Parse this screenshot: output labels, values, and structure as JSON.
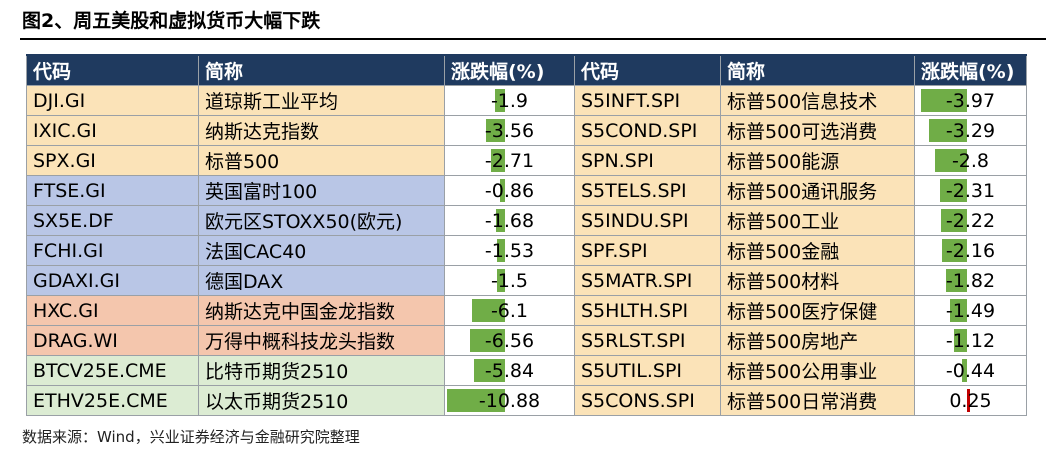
{
  "title": "图2、周五美股和虚拟货币大幅下跌",
  "source": "数据来源：Wind，兴业证券经济与金融研究院整理",
  "headers": [
    "代码",
    "简称",
    "涨跌幅(%)",
    "代码",
    "简称",
    "涨跌幅(%)"
  ],
  "colors": {
    "negative": "#70ad47",
    "positive": "#c00000",
    "header": "#1f3a5f"
  },
  "left_rows": [
    {
      "code": "DJI.GI",
      "name": "道琼斯工业平均",
      "change": "-1.9",
      "value": -1.9,
      "group": "us"
    },
    {
      "code": "IXIC.GI",
      "name": "纳斯达克指数",
      "change": "-3.56",
      "value": -3.56,
      "group": "us"
    },
    {
      "code": "SPX.GI",
      "name": "标普500",
      "change": "-2.71",
      "value": -2.71,
      "group": "us"
    },
    {
      "code": "FTSE.GI",
      "name": "英国富时100",
      "change": "-0.86",
      "value": -0.86,
      "group": "eu"
    },
    {
      "code": "SX5E.DF",
      "name": "欧元区STOXX50(欧元)",
      "change": "-1.68",
      "value": -1.68,
      "group": "eu"
    },
    {
      "code": "FCHI.GI",
      "name": "法国CAC40",
      "change": "-1.53",
      "value": -1.53,
      "group": "eu"
    },
    {
      "code": "GDAXI.GI",
      "name": "德国DAX",
      "change": "-1.5",
      "value": -1.5,
      "group": "eu"
    },
    {
      "code": "HXC.GI",
      "name": "纳斯达克中国金龙指数",
      "change": "-6.1",
      "value": -6.1,
      "group": "cn"
    },
    {
      "code": "DRAG.WI",
      "name": "万得中概科技龙头指数",
      "change": "-6.56",
      "value": -6.56,
      "group": "cn"
    },
    {
      "code": "BTCV25E.CME",
      "name": "比特币期货2510",
      "change": "-5.84",
      "value": -5.84,
      "group": "cr"
    },
    {
      "code": "ETHV25E.CME",
      "name": "以太币期货2510",
      "change": "-10.88",
      "value": -10.88,
      "group": "cr"
    }
  ],
  "right_rows": [
    {
      "code": "S5INFT.SPI",
      "name": "标普500信息技术",
      "change": "-3.97",
      "value": -3.97
    },
    {
      "code": "S5COND.SPI",
      "name": "标普500可选消费",
      "change": "-3.29",
      "value": -3.29
    },
    {
      "code": "SPN.SPI",
      "name": "标普500能源",
      "change": "-2.8",
      "value": -2.8
    },
    {
      "code": "S5TELS.SPI",
      "name": "标普500通讯服务",
      "change": "-2.31",
      "value": -2.31
    },
    {
      "code": "S5INDU.SPI",
      "name": "标普500工业",
      "change": "-2.22",
      "value": -2.22
    },
    {
      "code": "SPF.SPI",
      "name": "标普500金融",
      "change": "-2.16",
      "value": -2.16
    },
    {
      "code": "S5MATR.SPI",
      "name": "标普500材料",
      "change": "-1.82",
      "value": -1.82
    },
    {
      "code": "S5HLTH.SPI",
      "name": "标普500医疗保健",
      "change": "-1.49",
      "value": -1.49
    },
    {
      "code": "S5RLST.SPI",
      "name": "标普500房地产",
      "change": "-1.12",
      "value": -1.12
    },
    {
      "code": "S5UTIL.SPI",
      "name": "标普500公用事业",
      "change": "-0.44",
      "value": -0.44
    },
    {
      "code": "S5CONS.SPI",
      "name": "标普500日常消费",
      "change": "0.25",
      "value": 0.25
    }
  ]
}
